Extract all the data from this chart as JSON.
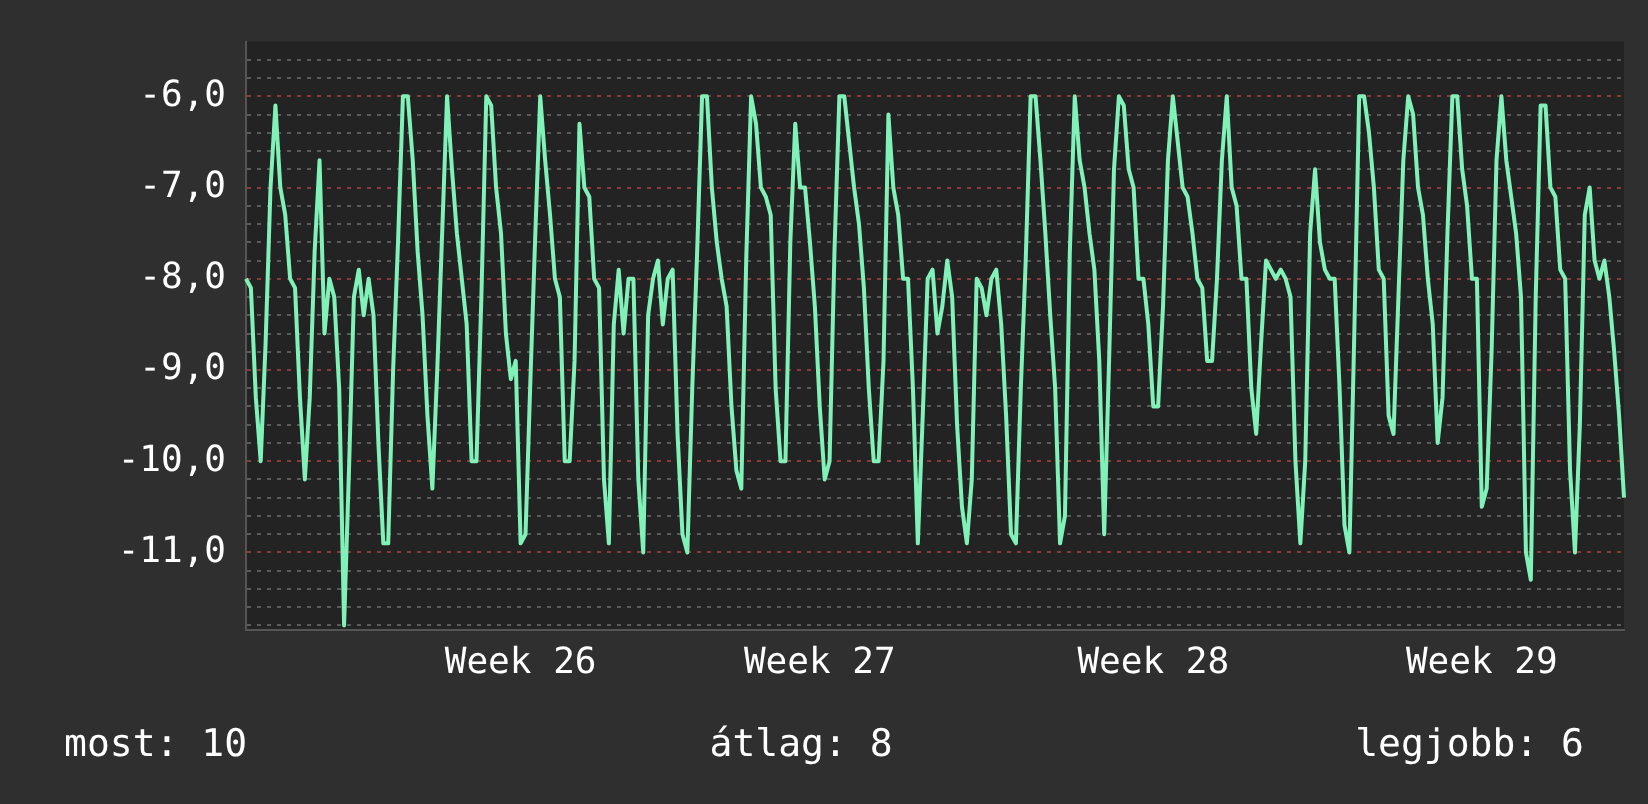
{
  "chart_data": {
    "type": "line",
    "marker": "none",
    "grid": "y",
    "categories": [
      null,
      null,
      null,
      null,
      null,
      null,
      null,
      null,
      null,
      null,
      null,
      null,
      null,
      null,
      null,
      null,
      null,
      null,
      null,
      null,
      null,
      null,
      null,
      null,
      null,
      null,
      null,
      null,
      null,
      null,
      null,
      null,
      null,
      null,
      null,
      null,
      null,
      null,
      null,
      null,
      null,
      null,
      null,
      null,
      null,
      null,
      null,
      null,
      null,
      null,
      null,
      null,
      null,
      null,
      null,
      null,
      "Week 26",
      null,
      null,
      null,
      null,
      null,
      null,
      null,
      null,
      null,
      null,
      null,
      null,
      null,
      null,
      null,
      null,
      null,
      null,
      null,
      null,
      null,
      null,
      null,
      null,
      null,
      null,
      null,
      null,
      null,
      null,
      null,
      null,
      null,
      null,
      null,
      null,
      null,
      null,
      null,
      null,
      null,
      null,
      null,
      null,
      null,
      null,
      null,
      null,
      null,
      null,
      null,
      null,
      null,
      null,
      null,
      null,
      null,
      null,
      null,
      null,
      "Week 27",
      null,
      null,
      null,
      null,
      null,
      null,
      null,
      null,
      null,
      null,
      null,
      null,
      null,
      null,
      null,
      null,
      null,
      null,
      null,
      null,
      null,
      null,
      null,
      null,
      null,
      null,
      null,
      null,
      null,
      null,
      null,
      null,
      null,
      null,
      null,
      null,
      null,
      null,
      null,
      null,
      null,
      null,
      null,
      null,
      null,
      null,
      null,
      null,
      null,
      null,
      null,
      null,
      null,
      null,
      null,
      null,
      null,
      null,
      null,
      null,
      null,
      null,
      null,
      null,
      null,
      null,
      null,
      "Week 28",
      null,
      null,
      null,
      null,
      null,
      null,
      null,
      null,
      null,
      null,
      null,
      null,
      null,
      null,
      null,
      null,
      null,
      null,
      null,
      null,
      null,
      null,
      null,
      null,
      null,
      null,
      null,
      null,
      null,
      null,
      null,
      null,
      null,
      null,
      null,
      null,
      null,
      null,
      null,
      null,
      null,
      null,
      null,
      null,
      null,
      null,
      null,
      null,
      null,
      null,
      null,
      null,
      null,
      null,
      null,
      null,
      null,
      null,
      null,
      null,
      null,
      null,
      null,
      null,
      null,
      null,
      "Week 29",
      null,
      null,
      null,
      null,
      null,
      null,
      null,
      null,
      null,
      null,
      null,
      null,
      null,
      null,
      null,
      null,
      null,
      null,
      null,
      null,
      null,
      null,
      null,
      null,
      null,
      null,
      null,
      null,
      null
    ],
    "ylim": [
      -11.85,
      -5.4
    ],
    "yticks": [
      {
        "value": -5.6,
        "label": null
      },
      {
        "value": -5.8,
        "label": null
      },
      {
        "value": -6,
        "label": "-6,0"
      },
      {
        "value": -6.2,
        "label": null
      },
      {
        "value": -6.4,
        "label": null
      },
      {
        "value": -6.6,
        "label": null
      },
      {
        "value": -6.8,
        "label": null
      },
      {
        "value": -7,
        "label": "-7,0"
      },
      {
        "value": -7.2,
        "label": null
      },
      {
        "value": -7.4,
        "label": null
      },
      {
        "value": -7.6,
        "label": null
      },
      {
        "value": -7.8,
        "label": null
      },
      {
        "value": -8,
        "label": "-8,0"
      },
      {
        "value": -8.2,
        "label": null
      },
      {
        "value": -8.4,
        "label": null
      },
      {
        "value": -8.6,
        "label": null
      },
      {
        "value": -8.8,
        "label": null
      },
      {
        "value": -9,
        "label": "-9,0"
      },
      {
        "value": -9.2,
        "label": null
      },
      {
        "value": -9.4,
        "label": null
      },
      {
        "value": -9.6,
        "label": null
      },
      {
        "value": -9.8,
        "label": null
      },
      {
        "value": -10,
        "label": "-10,0"
      },
      {
        "value": -10.2,
        "label": null
      },
      {
        "value": -10.4,
        "label": null
      },
      {
        "value": -10.6,
        "label": null
      },
      {
        "value": -10.8,
        "label": null
      },
      {
        "value": -11,
        "label": "-11,0"
      },
      {
        "value": -11.2,
        "label": null
      },
      {
        "value": -11.4,
        "label": null
      },
      {
        "value": -11.6,
        "label": null
      },
      {
        "value": -11.8,
        "label": null
      }
    ],
    "annotations": [
      "most: 10",
      "átlag: 8",
      "legjobb: 6"
    ],
    "series": [
      {
        "color": "#80f2b8",
        "values": [
          -8.0,
          -8.1,
          -9.3,
          -10.0,
          -8.7,
          -7.0,
          -6.1,
          -7.0,
          -7.3,
          -8.0,
          -8.1,
          -9.3,
          -10.2,
          -9.3,
          -7.7,
          -6.7,
          -8.6,
          -8.0,
          -8.2,
          -9.2,
          -11.8,
          -10.1,
          -8.2,
          -7.9,
          -8.4,
          -8.0,
          -8.4,
          -9.8,
          -10.9,
          -10.9,
          -9.0,
          -7.6,
          -6.0,
          -6.0,
          -6.7,
          -7.7,
          -8.4,
          -9.5,
          -10.3,
          -9.0,
          -7.5,
          -6.0,
          -6.8,
          -7.5,
          -8.0,
          -8.5,
          -10.0,
          -10.0,
          -8.2,
          -6.0,
          -6.1,
          -7.0,
          -7.5,
          -8.6,
          -9.1,
          -8.9,
          -10.9,
          -10.8,
          -9.1,
          -7.5,
          -6.0,
          -6.7,
          -7.3,
          -8.0,
          -8.2,
          -10.0,
          -10.0,
          -8.9,
          -6.3,
          -7.0,
          -7.1,
          -8.0,
          -8.1,
          -10.2,
          -10.9,
          -8.5,
          -7.9,
          -8.6,
          -8.0,
          -8.0,
          -10.2,
          -11.0,
          -8.4,
          -8.0,
          -7.8,
          -8.5,
          -8.0,
          -7.9,
          -9.7,
          -10.8,
          -11.0,
          -9.2,
          -7.7,
          -6.0,
          -6.0,
          -7.0,
          -7.6,
          -8.0,
          -8.3,
          -9.4,
          -10.1,
          -10.3,
          -7.8,
          -6.0,
          -6.3,
          -7.0,
          -7.1,
          -7.3,
          -9.2,
          -10.0,
          -10.0,
          -7.6,
          -6.3,
          -7.0,
          -7.0,
          -7.6,
          -8.3,
          -9.4,
          -10.2,
          -10.0,
          -7.7,
          -6.0,
          -6.0,
          -6.5,
          -7.0,
          -7.4,
          -8.1,
          -9.2,
          -10.0,
          -10.0,
          -8.9,
          -6.2,
          -7.0,
          -7.3,
          -8.0,
          -8.0,
          -9.2,
          -10.9,
          -9.5,
          -8.0,
          -7.9,
          -8.6,
          -8.3,
          -7.8,
          -8.2,
          -9.6,
          -10.5,
          -10.9,
          -10.2,
          -8.0,
          -8.1,
          -8.4,
          -8.0,
          -7.9,
          -8.5,
          -9.5,
          -10.8,
          -10.9,
          -9.2,
          -7.8,
          -6.0,
          -6.0,
          -6.7,
          -7.5,
          -8.4,
          -9.2,
          -10.9,
          -10.6,
          -7.7,
          -6.0,
          -6.7,
          -7.0,
          -7.5,
          -7.9,
          -8.9,
          -10.8,
          -8.9,
          -6.8,
          -6.0,
          -6.1,
          -6.8,
          -7.0,
          -8.0,
          -8.0,
          -8.5,
          -9.4,
          -9.4,
          -8.3,
          -6.7,
          -6.0,
          -6.5,
          -7.0,
          -7.1,
          -7.5,
          -8.0,
          -8.1,
          -8.9,
          -8.9,
          -8.0,
          -6.7,
          -6.0,
          -7.0,
          -7.2,
          -8.0,
          -8.0,
          -9.2,
          -9.7,
          -8.7,
          -7.8,
          -7.9,
          -8.0,
          -7.9,
          -8.0,
          -8.2,
          -10.0,
          -10.9,
          -10.0,
          -7.5,
          -6.8,
          -7.6,
          -7.9,
          -8.0,
          -8.0,
          -9.2,
          -10.7,
          -11.0,
          -8.6,
          -6.0,
          -6.0,
          -6.4,
          -7.0,
          -7.9,
          -8.0,
          -9.5,
          -9.7,
          -8.2,
          -6.7,
          -6.0,
          -6.2,
          -7.0,
          -7.3,
          -8.0,
          -8.5,
          -9.8,
          -9.3,
          -7.5,
          -6.0,
          -6.0,
          -6.8,
          -7.2,
          -8.0,
          -8.0,
          -10.5,
          -10.3,
          -8.8,
          -6.7,
          -6.0,
          -6.7,
          -7.1,
          -7.5,
          -8.2,
          -11.0,
          -11.3,
          -8.2,
          -6.1,
          -6.1,
          -7.0,
          -7.1,
          -7.9,
          -8.0,
          -10.1,
          -11.0,
          -9.6,
          -7.3,
          -7.0,
          -7.8,
          -8.0,
          -7.8,
          -8.2,
          -8.8,
          -9.5,
          -10.4
        ]
      }
    ]
  }
}
